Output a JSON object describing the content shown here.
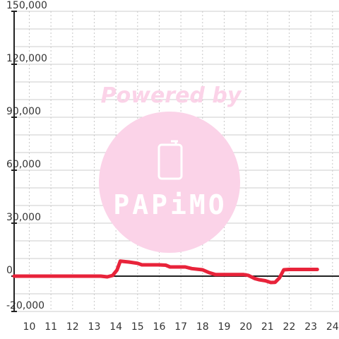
{
  "watermark": {
    "tagline": "Powered by",
    "brand": "PAPiMO",
    "color": "#fbd3e8",
    "icon": "phone-icon"
  },
  "chart_data": {
    "type": "line",
    "title": "",
    "xlabel": "",
    "ylabel": "",
    "xlim": [
      9.3,
      24.3
    ],
    "ylim": [
      -20000,
      150000
    ],
    "grid": true,
    "legend": "none",
    "x_ticks": [
      "10",
      "11",
      "12",
      "13",
      "14",
      "15",
      "16",
      "17",
      "18",
      "19",
      "20",
      "21",
      "22",
      "23",
      "24"
    ],
    "y_ticks": [
      "-20,000",
      "0",
      "30,000",
      "60,000",
      "90,000",
      "120,000",
      "150,000"
    ],
    "series": [
      {
        "color": "#e8233a",
        "x": [
          9.3,
          13.3,
          13.6,
          13.85,
          14.05,
          14.2,
          14.6,
          15.0,
          15.2,
          16.0,
          16.3,
          16.5,
          17.2,
          17.5,
          18.0,
          18.3,
          18.6,
          19.0,
          19.5,
          19.9,
          20.1,
          20.4,
          20.6,
          20.9,
          21.15,
          21.35,
          21.55,
          21.75,
          22.0,
          22.5,
          23.3
        ],
        "values": [
          0,
          0,
          -400,
          400,
          3500,
          8500,
          8000,
          7300,
          6400,
          6400,
          6200,
          5200,
          5200,
          4300,
          3600,
          2000,
          900,
          900,
          900,
          900,
          500,
          -1300,
          -2000,
          -2600,
          -3600,
          -3500,
          -1000,
          3600,
          3800,
          3800,
          3800
        ]
      }
    ]
  }
}
